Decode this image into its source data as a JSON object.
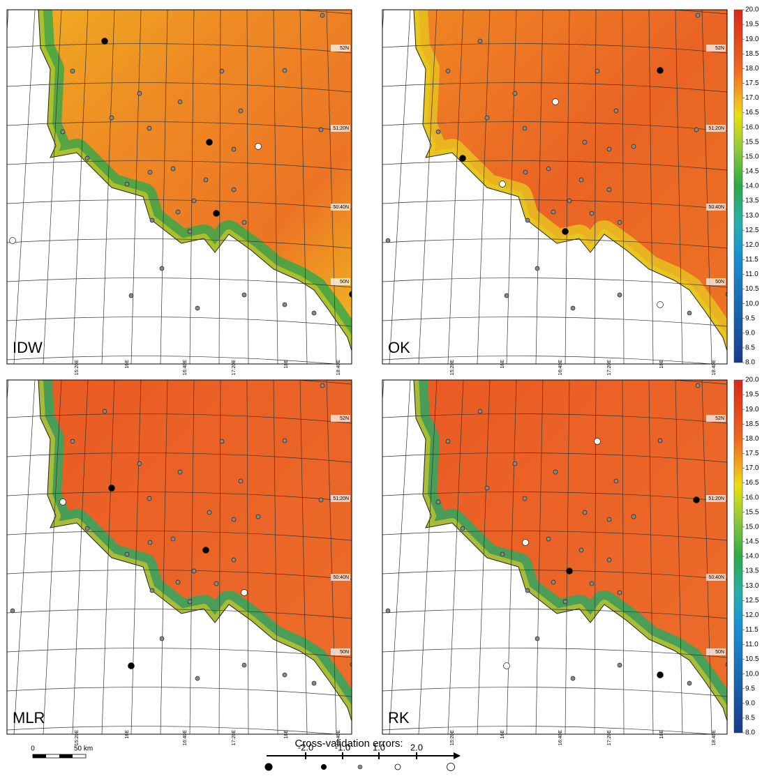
{
  "panels": [
    {
      "label": "IDW"
    },
    {
      "label": "OK"
    },
    {
      "label": "MLR"
    },
    {
      "label": "RK"
    }
  ],
  "longitude_labels": [
    "15:20E",
    "16E",
    "16:40E",
    "17:20E",
    "18E",
    "18:40E"
  ],
  "latitude_labels": [
    "52N",
    "51:20N",
    "50:40N",
    "50N"
  ],
  "colorbar": {
    "labels": [
      "20.0",
      "19.5",
      "19.0",
      "18.5",
      "18.0",
      "17.5",
      "17.0",
      "16.5",
      "16.0",
      "15.5",
      "15.0",
      "14.5",
      "14.0",
      "13.5",
      "13.0",
      "12.5",
      "12.0",
      "11.5",
      "11.0",
      "10.5",
      "10.0",
      "9.5",
      "9.0",
      "8.5",
      "8.0"
    ]
  },
  "scale_bar": {
    "start": "0",
    "end": "50 km"
  },
  "legend": {
    "title": "Cross-validation errors:",
    "ticks": [
      "-2.0",
      "-1.0",
      "1.0",
      "2.0"
    ]
  }
}
